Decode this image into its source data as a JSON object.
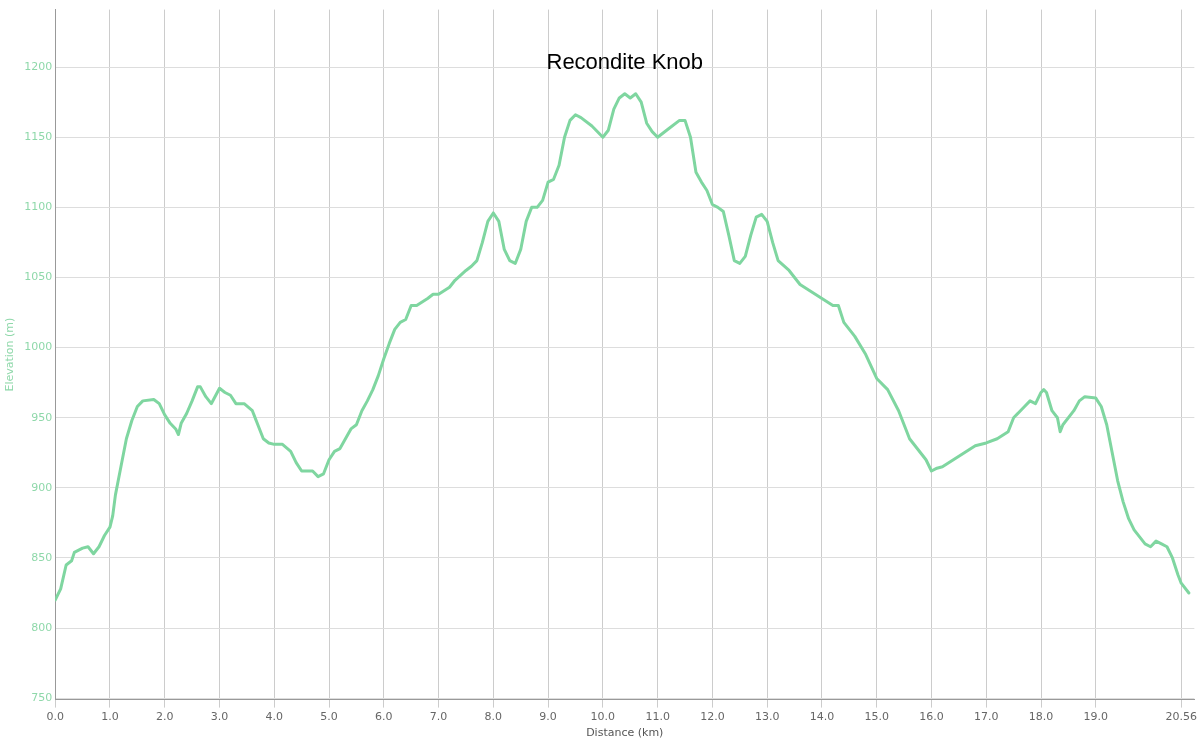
{
  "chart_data": {
    "type": "line",
    "title": "Recondite Knob",
    "xlabel": "Distance (km)",
    "ylabel": "Elevation (m)",
    "grid": true,
    "legend": false,
    "marker": "none",
    "line_style": "solid",
    "xlim": [
      0,
      20.8
    ],
    "ylim": [
      749,
      1241
    ],
    "xticks": [
      {
        "value": 0,
        "label": "0.0"
      },
      {
        "value": 1,
        "label": "1.0"
      },
      {
        "value": 2,
        "label": "2.0"
      },
      {
        "value": 3,
        "label": "3.0"
      },
      {
        "value": 4,
        "label": "4.0"
      },
      {
        "value": 5,
        "label": "5.0"
      },
      {
        "value": 6,
        "label": "6.0"
      },
      {
        "value": 7,
        "label": "7.0"
      },
      {
        "value": 8,
        "label": "8.0"
      },
      {
        "value": 9,
        "label": "9.0"
      },
      {
        "value": 10,
        "label": "10.0"
      },
      {
        "value": 11,
        "label": "11.0"
      },
      {
        "value": 12,
        "label": "12.0"
      },
      {
        "value": 13,
        "label": "13.0"
      },
      {
        "value": 14,
        "label": "14.0"
      },
      {
        "value": 15,
        "label": "15.0"
      },
      {
        "value": 16,
        "label": "16.0"
      },
      {
        "value": 17,
        "label": "17.0"
      },
      {
        "value": 18,
        "label": "18.0"
      },
      {
        "value": 19,
        "label": "19.0"
      },
      20.56
    ],
    "yticks": [
      750,
      800,
      850,
      900,
      950,
      1000,
      1050,
      1100,
      1150,
      1200
    ],
    "series": [
      {
        "color": "#7fd6a0",
        "x": [
          0,
          0.1,
          0.2,
          0.3,
          0.35,
          0.5,
          0.6,
          0.7,
          0.8,
          0.9,
          1.0,
          1.05,
          1.1,
          1.2,
          1.3,
          1.4,
          1.5,
          1.6,
          1.8,
          1.9,
          2.0,
          2.1,
          2.2,
          2.25,
          2.3,
          2.4,
          2.5,
          2.6,
          2.65,
          2.75,
          2.85,
          3.0,
          3.1,
          3.2,
          3.3,
          3.45,
          3.6,
          3.7,
          3.8,
          3.9,
          4.0,
          4.15,
          4.3,
          4.4,
          4.5,
          4.7,
          4.8,
          4.9,
          5.0,
          5.1,
          5.2,
          5.3,
          5.4,
          5.5,
          5.6,
          5.7,
          5.8,
          5.9,
          6.0,
          6.1,
          6.2,
          6.3,
          6.4,
          6.5,
          6.6,
          6.8,
          6.9,
          7.0,
          7.2,
          7.3,
          7.5,
          7.6,
          7.7,
          7.8,
          7.9,
          8.0,
          8.1,
          8.2,
          8.3,
          8.4,
          8.5,
          8.6,
          8.7,
          8.8,
          8.9,
          9.0,
          9.1,
          9.2,
          9.3,
          9.4,
          9.5,
          9.6,
          9.8,
          10.0,
          10.1,
          10.2,
          10.3,
          10.4,
          10.5,
          10.6,
          10.7,
          10.8,
          10.9,
          11.0,
          11.2,
          11.4,
          11.5,
          11.6,
          11.7,
          11.8,
          11.9,
          12.0,
          12.1,
          12.2,
          12.3,
          12.4,
          12.5,
          12.6,
          12.7,
          12.8,
          12.9,
          13.0,
          13.1,
          13.2,
          13.4,
          13.6,
          13.8,
          14.0,
          14.2,
          14.3,
          14.4,
          14.6,
          14.8,
          15.0,
          15.2,
          15.4,
          15.6,
          15.8,
          15.9,
          16.0,
          16.1,
          16.2,
          16.4,
          16.6,
          16.8,
          17.0,
          17.2,
          17.4,
          17.5,
          17.7,
          17.8,
          17.9,
          18.0,
          18.05,
          18.1,
          18.2,
          18.3,
          18.35,
          18.4,
          18.6,
          18.7,
          18.8,
          19.0,
          19.1,
          19.2,
          19.3,
          19.4,
          19.5,
          19.6,
          19.7,
          19.9,
          20.0,
          20.1,
          20.2,
          20.3,
          20.4,
          20.5,
          20.56,
          20.7
        ],
        "values": [
          820,
          828,
          845,
          848,
          854,
          857,
          858,
          853,
          858,
          866,
          872,
          880,
          895,
          915,
          935,
          948,
          958,
          962,
          963,
          960,
          952,
          946,
          942,
          938,
          946,
          953,
          962,
          972,
          972,
          965,
          960,
          971,
          968,
          966,
          960,
          960,
          955,
          945,
          935,
          932,
          931,
          931,
          926,
          918,
          912,
          912,
          908,
          910,
          920,
          926,
          928,
          935,
          942,
          945,
          955,
          962,
          970,
          980,
          992,
          1003,
          1013,
          1018,
          1020,
          1030,
          1030,
          1035,
          1038,
          1038,
          1043,
          1048,
          1055,
          1058,
          1062,
          1075,
          1090,
          1096,
          1090,
          1070,
          1062,
          1060,
          1070,
          1090,
          1100,
          1100,
          1105,
          1118,
          1120,
          1130,
          1150,
          1162,
          1166,
          1164,
          1158,
          1150,
          1155,
          1170,
          1178,
          1181,
          1178,
          1181,
          1175,
          1160,
          1154,
          1150,
          1156,
          1162,
          1162,
          1150,
          1125,
          1118,
          1112,
          1102,
          1100,
          1097,
          1080,
          1062,
          1060,
          1065,
          1080,
          1093,
          1095,
          1090,
          1075,
          1062,
          1055,
          1045,
          1040,
          1035,
          1030,
          1030,
          1018,
          1008,
          995,
          978,
          970,
          955,
          935,
          925,
          920,
          912,
          914,
          915,
          920,
          925,
          930,
          932,
          935,
          940,
          950,
          958,
          962,
          960,
          968,
          970,
          968,
          955,
          950,
          940,
          945,
          955,
          962,
          965,
          964,
          958,
          945,
          925,
          905,
          890,
          878,
          870,
          860,
          858,
          862,
          860,
          858,
          850,
          838,
          832,
          825
        ]
      }
    ]
  }
}
